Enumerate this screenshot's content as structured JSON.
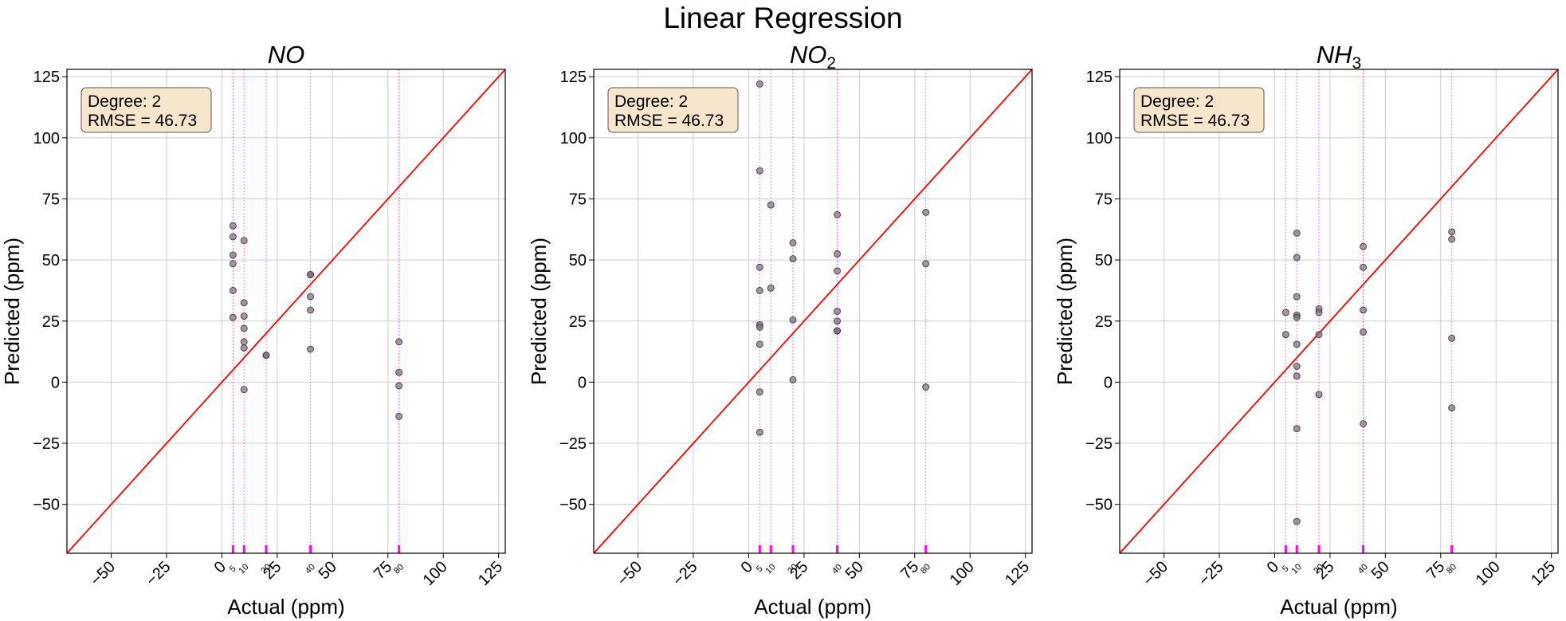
{
  "title": "Linear Regression",
  "colors": {
    "identity_line": "#ff0000",
    "points_fill": "#7f6a7a",
    "points_edge": "#2b2b2b",
    "reference_lines": "#ff00ff",
    "grid": "#cccccc",
    "annotation_bg": "#f6e6cb",
    "annotation_edge": "#555555"
  },
  "chart_data": [
    {
      "type": "scatter",
      "title": "NO",
      "title_main": "NO",
      "title_sub": "",
      "xlabel": "Actual (ppm)",
      "ylabel": "Predicted (ppm)",
      "xlim": [
        -70,
        128
      ],
      "ylim": [
        -70,
        128
      ],
      "xticks": [
        -50,
        -25,
        0,
        25,
        50,
        75,
        100,
        125
      ],
      "yticks": [
        -50,
        -25,
        0,
        25,
        50,
        75,
        100,
        125
      ],
      "grid": true,
      "reference_values": [
        5,
        10,
        20,
        40,
        80
      ],
      "identity_line": "y = x",
      "annotation": [
        "Degree: 2",
        "RMSE = 46.73"
      ],
      "points": [
        [
          5,
          64
        ],
        [
          5,
          59.5
        ],
        [
          5,
          52
        ],
        [
          5,
          48.5
        ],
        [
          5,
          37.5
        ],
        [
          5,
          26.5
        ],
        [
          10,
          58
        ],
        [
          10,
          32.5
        ],
        [
          10,
          27
        ],
        [
          10,
          22
        ],
        [
          10,
          16.5
        ],
        [
          10,
          14
        ],
        [
          10,
          -3
        ],
        [
          20,
          11
        ],
        [
          20,
          11
        ],
        [
          40,
          44
        ],
        [
          40,
          44
        ],
        [
          40,
          35
        ],
        [
          40,
          29.5
        ],
        [
          40,
          13.5
        ],
        [
          80,
          16.5
        ],
        [
          80,
          4
        ],
        [
          80,
          -1.5
        ],
        [
          80,
          -14
        ]
      ]
    },
    {
      "type": "scatter",
      "title": "NO2",
      "title_main": "NO",
      "title_sub": "2",
      "xlabel": "Actual (ppm)",
      "ylabel": "Predicted (ppm)",
      "xlim": [
        -70,
        128
      ],
      "ylim": [
        -70,
        128
      ],
      "xticks": [
        -50,
        -25,
        0,
        25,
        50,
        75,
        100,
        125
      ],
      "yticks": [
        -50,
        -25,
        0,
        25,
        50,
        75,
        100,
        125
      ],
      "grid": true,
      "reference_values": [
        5,
        10,
        20,
        40,
        80
      ],
      "identity_line": "y = x",
      "annotation": [
        "Degree: 2",
        "RMSE = 46.73"
      ],
      "points": [
        [
          5,
          122
        ],
        [
          5,
          86.5
        ],
        [
          5,
          47
        ],
        [
          5,
          37.5
        ],
        [
          5,
          23.5
        ],
        [
          5,
          22.5
        ],
        [
          5,
          15.5
        ],
        [
          5,
          -4
        ],
        [
          5,
          -20.5
        ],
        [
          10,
          72.5
        ],
        [
          10,
          38.5
        ],
        [
          20,
          57
        ],
        [
          20,
          50.5
        ],
        [
          20,
          25.5
        ],
        [
          20,
          1
        ],
        [
          40,
          68.5
        ],
        [
          40,
          52.5
        ],
        [
          40,
          45.5
        ],
        [
          40,
          29
        ],
        [
          40,
          25
        ],
        [
          40,
          21
        ],
        [
          40,
          21
        ],
        [
          80,
          69.5
        ],
        [
          80,
          48.5
        ],
        [
          80,
          -2
        ]
      ]
    },
    {
      "type": "scatter",
      "title": "NH3",
      "title_main": "NH",
      "title_sub": "3",
      "xlabel": "Actual (ppm)",
      "ylabel": "Predicted (ppm)",
      "xlim": [
        -70,
        128
      ],
      "ylim": [
        -70,
        128
      ],
      "xticks": [
        -50,
        -25,
        0,
        25,
        50,
        75,
        100,
        125
      ],
      "yticks": [
        -50,
        -25,
        0,
        25,
        50,
        75,
        100,
        125
      ],
      "grid": true,
      "reference_values": [
        5,
        10,
        20,
        40,
        80
      ],
      "identity_line": "y = x",
      "annotation": [
        "Degree: 2",
        "RMSE = 46.73"
      ],
      "points": [
        [
          5,
          28.5
        ],
        [
          5,
          19.5
        ],
        [
          10,
          61
        ],
        [
          10,
          51
        ],
        [
          10,
          35
        ],
        [
          10,
          27.5
        ],
        [
          10,
          26.5
        ],
        [
          10,
          15.5
        ],
        [
          10,
          6.5
        ],
        [
          10,
          2.5
        ],
        [
          10,
          -19
        ],
        [
          10,
          -57
        ],
        [
          20,
          30
        ],
        [
          20,
          28.5
        ],
        [
          20,
          19.5
        ],
        [
          20,
          -5
        ],
        [
          40,
          55.5
        ],
        [
          40,
          47
        ],
        [
          40,
          29.5
        ],
        [
          40,
          20.5
        ],
        [
          40,
          -17
        ],
        [
          80,
          61.5
        ],
        [
          80,
          58.5
        ],
        [
          80,
          18
        ],
        [
          80,
          -10.5
        ]
      ]
    }
  ]
}
